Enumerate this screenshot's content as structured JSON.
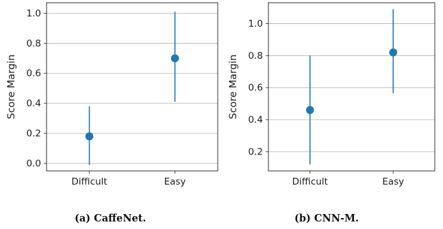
{
  "chart_data": [
    {
      "type": "errorbar",
      "caption": "(a) CaffeNet.",
      "ylabel": "Score Margin",
      "categories": [
        "Difficult",
        "Easy"
      ],
      "values": [
        0.18,
        0.7
      ],
      "error_low": [
        -0.01,
        0.41
      ],
      "error_high": [
        0.38,
        1.01
      ],
      "ylim": [
        -0.05,
        1.07
      ],
      "yticks": [
        "0.0",
        "0.2",
        "0.4",
        "0.6",
        "0.8",
        "1.0"
      ],
      "grid": "horizontal",
      "color": "#1f77b4"
    },
    {
      "type": "errorbar",
      "caption": "(b) CNN-M.",
      "ylabel": "Score Margin",
      "categories": [
        "Difficult",
        "Easy"
      ],
      "values": [
        0.46,
        0.82
      ],
      "error_low": [
        0.12,
        0.565
      ],
      "error_high": [
        0.8,
        1.09
      ],
      "ylim": [
        0.08,
        1.13
      ],
      "yticks": [
        "0.2",
        "0.4",
        "0.6",
        "0.8",
        "1.0"
      ],
      "grid": "horizontal",
      "color": "#1f77b4"
    }
  ]
}
